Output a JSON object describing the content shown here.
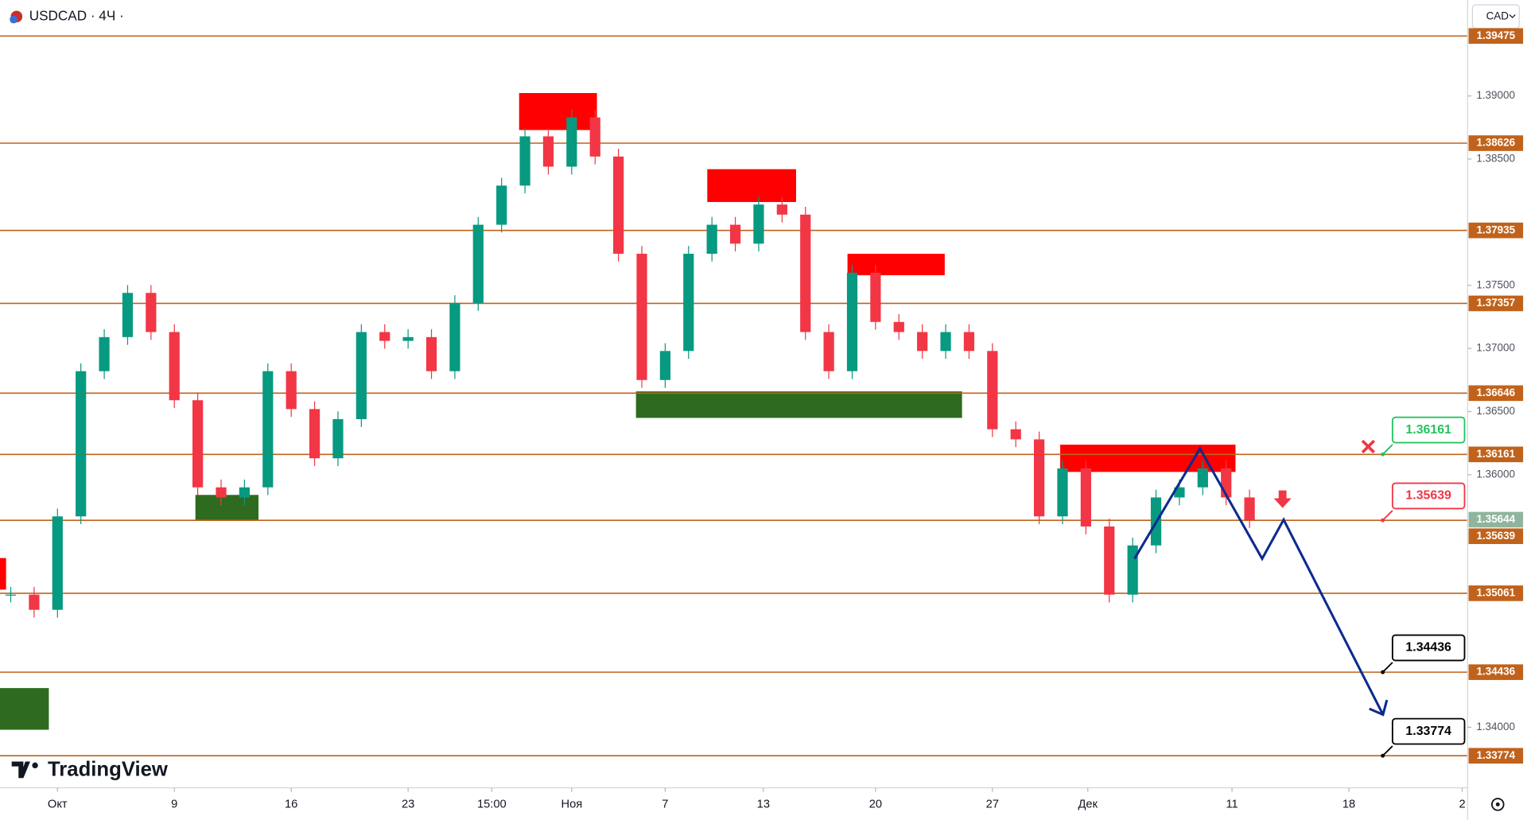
{
  "header": {
    "symbol": "USDCAD · 4Ч ·",
    "currency": "CAD",
    "brand": "TradingView"
  },
  "chart_data": {
    "type": "candlestick",
    "x": [
      -2,
      -1,
      0,
      1,
      2,
      3,
      4,
      5,
      6,
      7,
      8,
      9,
      10,
      11,
      12,
      13,
      14,
      15,
      16,
      17,
      18,
      19,
      20,
      21,
      22,
      23,
      24,
      25,
      26,
      27,
      28,
      29,
      30,
      31,
      32,
      33,
      34,
      35,
      36,
      37,
      38,
      39,
      40,
      41,
      42,
      43,
      44,
      45,
      46,
      47,
      48,
      49,
      50,
      51
    ],
    "values": [
      1.3505,
      1.3493,
      1.3567,
      1.3682,
      1.3709,
      1.3744,
      1.3713,
      1.3659,
      1.359,
      1.3582,
      1.359,
      1.3682,
      1.3652,
      1.3613,
      1.3644,
      1.3713,
      1.3706,
      1.3709,
      1.3682,
      1.3736,
      1.3798,
      1.3829,
      1.3868,
      1.3844,
      1.3883,
      1.3852,
      1.3775,
      1.3675,
      1.3698,
      1.3775,
      1.3798,
      1.3783,
      1.3814,
      1.3806,
      1.3713,
      1.3682,
      1.376,
      1.3721,
      1.3713,
      1.3698,
      1.3713,
      1.3698,
      1.3636,
      1.3628,
      1.3567,
      1.3605,
      1.3559,
      1.3505,
      1.3544,
      1.3582,
      1.359,
      1.3605,
      1.3582,
      1.3564
    ],
    "up_color": "#089981",
    "down_color": "#f23645",
    "xlim": [
      -2.46,
      60.33
    ],
    "ylim": [
      1.3352,
      1.3976
    ],
    "xticks": [
      {
        "value": 0,
        "label": "Окт"
      },
      {
        "value": 5,
        "label": "9"
      },
      {
        "value": 10,
        "label": "16"
      },
      {
        "value": 15,
        "label": "23"
      },
      {
        "value": 18.58,
        "label": "15:00"
      },
      {
        "value": 22,
        "label": "Ноя"
      },
      {
        "value": 26,
        "label": "7"
      },
      {
        "value": 30.2,
        "label": "13"
      },
      {
        "value": 35,
        "label": "20"
      },
      {
        "value": 40,
        "label": "27"
      },
      {
        "value": 44.08,
        "label": "Дек"
      },
      {
        "value": 50.25,
        "label": "11"
      },
      {
        "value": 55.25,
        "label": "18"
      },
      {
        "value": 60.1,
        "label": "2"
      }
    ],
    "yticks": [
      {
        "value": 1.39,
        "label": "1.39000"
      },
      {
        "value": 1.385,
        "label": "1.38500"
      },
      {
        "value": 1.375,
        "label": "1.37500"
      },
      {
        "value": 1.37,
        "label": "1.37000"
      },
      {
        "value": 1.365,
        "label": "1.36500"
      },
      {
        "value": 1.36,
        "label": "1.36000"
      },
      {
        "value": 1.34,
        "label": "1.34000"
      }
    ],
    "levels": [
      1.39475,
      1.38626,
      1.37935,
      1.37357,
      1.36646,
      1.36161,
      1.35639,
      1.35061,
      1.34436,
      1.33774
    ],
    "level_color": "#c0621b",
    "last_price": 1.35644,
    "zones": [
      {
        "x": [
          19.75,
          23.08
        ],
        "y": [
          1.3873,
          1.39023
        ],
        "color": "#ff0000"
      },
      {
        "x": [
          27.8,
          31.6
        ],
        "y": [
          1.3816,
          1.3842
        ],
        "color": "#ff0000"
      },
      {
        "x": [
          33.8,
          37.96
        ],
        "y": [
          1.3758,
          1.3775
        ],
        "color": "#ff0000"
      },
      {
        "x": [
          42.9,
          50.4
        ],
        "y": [
          1.36022,
          1.36238
        ],
        "color": "#ff0000"
      },
      {
        "x": [
          -2.46,
          -2.2
        ],
        "y": [
          1.3509,
          1.3534
        ],
        "color": "#ff0000"
      },
      {
        "x": [
          5.9,
          8.6
        ],
        "y": [
          1.3564,
          1.3584
        ],
        "color": "#2e6b1e"
      },
      {
        "x": [
          24.75,
          38.7
        ],
        "y": [
          1.3645,
          1.3666
        ],
        "color": "#2e6b1e"
      },
      {
        "x": [
          -2.46,
          -0.37
        ],
        "y": [
          1.3398,
          1.3431
        ],
        "color": "#2e6b1e"
      }
    ],
    "projection": {
      "color": "#0d2b8f",
      "x": [
        46.08,
        48.88,
        51.54,
        52.46,
        56.71
      ],
      "values": [
        1.35335,
        1.36207,
        1.35335,
        1.35644,
        1.341
      ]
    },
    "annotations": [
      {
        "label": "1.36161",
        "value": 1.36161,
        "x": 56.7,
        "color": "#22c55e"
      },
      {
        "label": "1.35639",
        "value": 1.35639,
        "x": 56.7,
        "color": "#f23645"
      },
      {
        "label": "1.34436",
        "value": 1.34436,
        "x": 56.7,
        "color": "#000000"
      },
      {
        "label": "1.33774",
        "value": 1.33774,
        "x": 56.7,
        "color": "#000000"
      }
    ]
  }
}
